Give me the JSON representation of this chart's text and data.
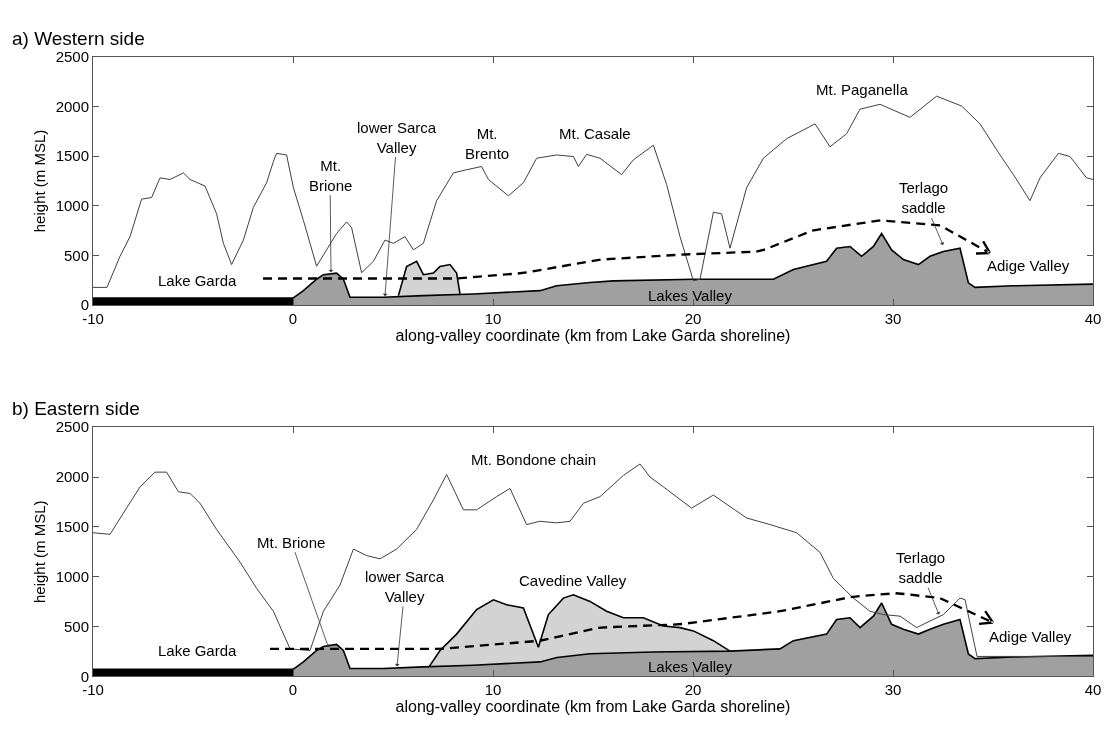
{
  "chart_data": [
    {
      "type": "line",
      "title": "a) Western side",
      "xlabel": "along-valley coordinate (km from Lake Garda shoreline)",
      "ylabel": "height (m MSL)",
      "xlim": [
        -10,
        40
      ],
      "ylim": [
        0,
        2500
      ],
      "xticks": [
        -10,
        0,
        10,
        20,
        30,
        40
      ],
      "yticks": [
        0,
        500,
        1000,
        1500,
        2000,
        2500
      ],
      "series": [
        {
          "type": "area",
          "color": "#d3d3d3",
          "x": [
            5.27,
            5.68,
            6.18,
            6.52,
            7.02,
            7.35,
            7.85,
            8.18,
            8.35
          ],
          "values": [
            95,
            389,
            441,
            306,
            322,
            389,
            408,
            322,
            112
          ]
        },
        {
          "type": "area",
          "color": "#a0a0a0",
          "x": [
            0,
            0.52,
            1.18,
            1.52,
            2.18,
            2.52,
            2.85,
            4.5,
            6.52,
            9.02,
            12.35,
            13.18,
            14.85,
            16.02,
            20.02,
            24.02,
            25.02,
            26.68,
            27.18,
            27.85,
            28.43,
            29.02,
            29.43,
            29.93,
            30.52,
            31.27,
            31.85,
            32.52,
            33.35,
            33.77,
            34.1,
            36,
            40
          ],
          "values": [
            70,
            145,
            260,
            306,
            322,
            260,
            79,
            79,
            95,
            112,
            145,
            194,
            227,
            244,
            260,
            260,
            359,
            441,
            573,
            590,
            491,
            590,
            721,
            556,
            458,
            408,
            491,
            540,
            573,
            224,
            178,
            194,
            211
          ]
        },
        {
          "type": "area",
          "color": "#000000",
          "x": [
            -10,
            0
          ],
          "values": [
            70,
            70
          ]
        },
        {
          "color": "#404040",
          "x": [
            -10,
            -9.3,
            -8.65,
            -8.15,
            -7.57,
            -7.07,
            -6.65,
            -6.15,
            -5.48,
            -5.15,
            -4.4,
            -3.82,
            -3.48,
            -3.07,
            -2.48,
            -1.98,
            -1.32,
            -0.98,
            -0.82,
            -0.32,
            0.02,
            0.52,
            1.18,
            1.68,
            2.18,
            2.68,
            2.93,
            3.43,
            4.02,
            4.6,
            5.02,
            5.6,
            6.02,
            6.52,
            7.18,
            8.02,
            8.68,
            9.43,
            9.77,
            10.77,
            11.52,
            12.18,
            13.18,
            14.02,
            14.27,
            14.68,
            15.35,
            16.43,
            17.02,
            18.02,
            18.68,
            19.35,
            20.02,
            20.35,
            21.02,
            21.43,
            21.85,
            22.68,
            23.52,
            24.68,
            26.1,
            26.85,
            27.68,
            28.35,
            29.35,
            30.85,
            32.18,
            33.43,
            34.35,
            35.35,
            36.02,
            36.85,
            37.35,
            38.27,
            38.85,
            39.68,
            40
          ],
          "values": [
            178,
            178,
            491,
            689,
            1067,
            1083,
            1281,
            1265,
            1331,
            1265,
            1199,
            919,
            622,
            408,
            655,
            985,
            1232,
            1446,
            1528,
            1512,
            1182,
            853,
            392,
            556,
            721,
            837,
            780,
            326,
            441,
            655,
            622,
            689,
            556,
            622,
            1051,
            1331,
            1363,
            1396,
            1265,
            1100,
            1232,
            1479,
            1512,
            1496,
            1396,
            1518,
            1479,
            1314,
            1463,
            1610,
            1215,
            689,
            244,
            260,
            935,
            919,
            573,
            1182,
            1479,
            1676,
            1825,
            1594,
            1726,
            1973,
            2022,
            1891,
            2104,
            2005,
            1825,
            1512,
            1314,
            1051,
            1281,
            1528,
            1496,
            1281,
            1265
          ]
        }
      ],
      "annotations": [
        "Lake Garda",
        {
          "text": "Mt.\nBrione",
          "x": 1.9,
          "y": 330
        },
        {
          "text": "lower Sarca\nValley",
          "x": 4.6,
          "y": 90
        },
        "Mt.\nBrento",
        "Mt. Casale",
        "Mt. Paganella",
        {
          "text": "Terlago\nsaddle",
          "x": 32.5,
          "y": 605
        },
        "Adige Valley",
        "Lakes Valley"
      ]
    },
    {
      "type": "line",
      "title": "b) Eastern side",
      "xlabel": "along-valley coordinate (km from Lake Garda shoreline)",
      "ylabel": "height (m MSL)",
      "xlim": [
        -10,
        40
      ],
      "ylim": [
        0,
        2500
      ],
      "xticks": [
        -10,
        0,
        10,
        20,
        30,
        40
      ],
      "yticks": [
        0,
        500,
        1000,
        1500,
        2000,
        2500
      ],
      "series": [
        {
          "type": "area",
          "color": "#d3d3d3",
          "x": [
            6.8,
            7.35,
            8.18,
            9.18,
            10.02,
            10.68,
            11.52,
            12.27,
            12.77,
            13.52,
            14.02,
            14.85,
            15.68,
            16.52,
            17.52,
            18.52,
            19.35,
            20.02,
            21.02,
            21.85
          ],
          "values": [
            95,
            259,
            424,
            670,
            768,
            719,
            686,
            292,
            620,
            785,
            818,
            752,
            653,
            588,
            588,
            506,
            489,
            456,
            358,
            253
          ]
        },
        {
          "type": "area",
          "color": "#a0a0a0",
          "x": [
            0,
            0.52,
            1.18,
            1.52,
            2.18,
            2.52,
            2.85,
            4.5,
            6.5,
            9,
            12.35,
            13.2,
            14.85,
            18,
            21.85,
            24.35,
            25.02,
            26.68,
            27.18,
            27.85,
            28.35,
            29.02,
            29.43,
            29.93,
            30.52,
            31.27,
            31.85,
            32.52,
            33.35,
            33.77,
            34.1,
            36,
            40
          ],
          "values": [
            70,
            145,
            260,
            300,
            320,
            260,
            79,
            79,
            95,
            112,
            145,
            190,
            227,
            245,
            253,
            276,
            358,
            424,
            571,
            588,
            489,
            604,
            736,
            522,
            473,
            424,
            473,
            522,
            571,
            224,
            178,
            194,
            211
          ]
        },
        {
          "type": "area",
          "color": "#000000",
          "x": [
            -10,
            0
          ],
          "values": [
            70,
            70
          ]
        },
        {
          "color": "#404040",
          "x": [
            -10,
            -9.15,
            -8.48,
            -7.65,
            -6.9,
            -6.32,
            -5.73,
            -5.15,
            -4.65,
            -3.82,
            -2.65,
            -1.82,
            -0.98,
            -0.15,
            0.85,
            1.52,
            2.35,
            3.02,
            3.68,
            4.35,
            5.18,
            6.18,
            7.02,
            7.68,
            8.52,
            9.18,
            10.18,
            10.85,
            11.68,
            12.35,
            13.18,
            13.85,
            14.52,
            15.35,
            16.52,
            17.35,
            17.85,
            18.52,
            19.93,
            21.02,
            21.85,
            22.68,
            23.85,
            25.18,
            26.35,
            27.02,
            28.02,
            28.85,
            29.52,
            30.35,
            31.18,
            31.85,
            32.52,
            33.35,
            33.6,
            34.2,
            40
          ],
          "values": [
            1441,
            1425,
            1638,
            1901,
            2049,
            2049,
            1852,
            1835,
            1737,
            1474,
            1146,
            883,
            653,
            276,
            259,
            653,
            916,
            1277,
            1212,
            1179,
            1277,
            1474,
            1770,
            2026,
            1671,
            1671,
            1803,
            1885,
            1523,
            1556,
            1540,
            1556,
            1737,
            1803,
            2016,
            2131,
            2000,
            1901,
            1688,
            1819,
            1704,
            1589,
            1523,
            1441,
            1244,
            982,
            785,
            653,
            620,
            604,
            489,
            555,
            620,
            785,
            770,
            200,
            200
          ]
        }
      ],
      "annotations": [
        "Lake Garda",
        {
          "text": "Mt. Brione",
          "x": 1.77,
          "y": 293
        },
        {
          "text": "lower Sarca\nValley",
          "x": 5.2,
          "y": 100
        },
        "Mt. Bondone chain",
        "Cavedine Valley",
        {
          "text": "Terlago\nsaddle",
          "x": 32.3,
          "y": 620
        },
        "Adige Valley",
        "Lakes Valley"
      ]
    }
  ]
}
